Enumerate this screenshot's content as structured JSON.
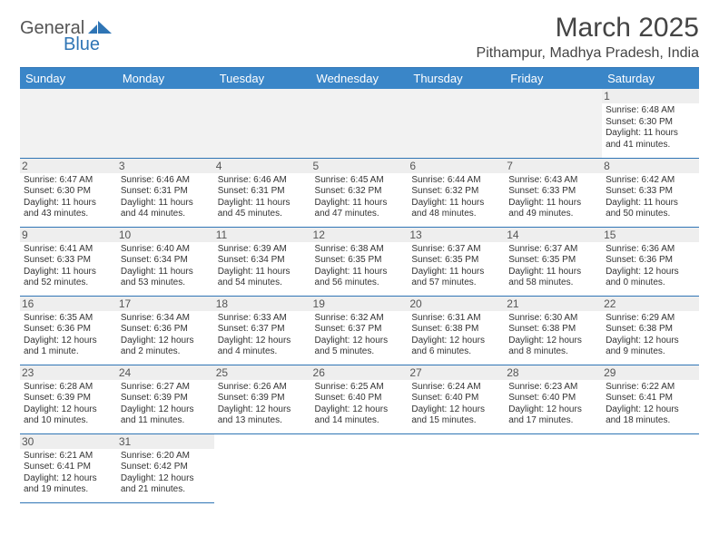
{
  "logo": {
    "general": "General",
    "blue": "Blue"
  },
  "title": "March 2025",
  "location": "Pithampur, Madhya Pradesh, India",
  "colors": {
    "header_bg": "#3a86c8",
    "header_text": "#ffffff",
    "border": "#2f75b5",
    "daynum_bg": "#eeeeee",
    "text": "#333333",
    "logo_blue": "#2f75b5"
  },
  "typography": {
    "title_fontsize": 30,
    "location_fontsize": 16,
    "dayheader_fontsize": 13,
    "daynum_fontsize": 12,
    "body_fontsize": 10
  },
  "dayHeaders": [
    "Sunday",
    "Monday",
    "Tuesday",
    "Wednesday",
    "Thursday",
    "Friday",
    "Saturday"
  ],
  "weeks": [
    [
      null,
      null,
      null,
      null,
      null,
      null,
      {
        "n": "1",
        "sr": "Sunrise: 6:48 AM",
        "ss": "Sunset: 6:30 PM",
        "dl": "Daylight: 11 hours and 41 minutes."
      }
    ],
    [
      {
        "n": "2",
        "sr": "Sunrise: 6:47 AM",
        "ss": "Sunset: 6:30 PM",
        "dl": "Daylight: 11 hours and 43 minutes."
      },
      {
        "n": "3",
        "sr": "Sunrise: 6:46 AM",
        "ss": "Sunset: 6:31 PM",
        "dl": "Daylight: 11 hours and 44 minutes."
      },
      {
        "n": "4",
        "sr": "Sunrise: 6:46 AM",
        "ss": "Sunset: 6:31 PM",
        "dl": "Daylight: 11 hours and 45 minutes."
      },
      {
        "n": "5",
        "sr": "Sunrise: 6:45 AM",
        "ss": "Sunset: 6:32 PM",
        "dl": "Daylight: 11 hours and 47 minutes."
      },
      {
        "n": "6",
        "sr": "Sunrise: 6:44 AM",
        "ss": "Sunset: 6:32 PM",
        "dl": "Daylight: 11 hours and 48 minutes."
      },
      {
        "n": "7",
        "sr": "Sunrise: 6:43 AM",
        "ss": "Sunset: 6:33 PM",
        "dl": "Daylight: 11 hours and 49 minutes."
      },
      {
        "n": "8",
        "sr": "Sunrise: 6:42 AM",
        "ss": "Sunset: 6:33 PM",
        "dl": "Daylight: 11 hours and 50 minutes."
      }
    ],
    [
      {
        "n": "9",
        "sr": "Sunrise: 6:41 AM",
        "ss": "Sunset: 6:33 PM",
        "dl": "Daylight: 11 hours and 52 minutes."
      },
      {
        "n": "10",
        "sr": "Sunrise: 6:40 AM",
        "ss": "Sunset: 6:34 PM",
        "dl": "Daylight: 11 hours and 53 minutes."
      },
      {
        "n": "11",
        "sr": "Sunrise: 6:39 AM",
        "ss": "Sunset: 6:34 PM",
        "dl": "Daylight: 11 hours and 54 minutes."
      },
      {
        "n": "12",
        "sr": "Sunrise: 6:38 AM",
        "ss": "Sunset: 6:35 PM",
        "dl": "Daylight: 11 hours and 56 minutes."
      },
      {
        "n": "13",
        "sr": "Sunrise: 6:37 AM",
        "ss": "Sunset: 6:35 PM",
        "dl": "Daylight: 11 hours and 57 minutes."
      },
      {
        "n": "14",
        "sr": "Sunrise: 6:37 AM",
        "ss": "Sunset: 6:35 PM",
        "dl": "Daylight: 11 hours and 58 minutes."
      },
      {
        "n": "15",
        "sr": "Sunrise: 6:36 AM",
        "ss": "Sunset: 6:36 PM",
        "dl": "Daylight: 12 hours and 0 minutes."
      }
    ],
    [
      {
        "n": "16",
        "sr": "Sunrise: 6:35 AM",
        "ss": "Sunset: 6:36 PM",
        "dl": "Daylight: 12 hours and 1 minute."
      },
      {
        "n": "17",
        "sr": "Sunrise: 6:34 AM",
        "ss": "Sunset: 6:36 PM",
        "dl": "Daylight: 12 hours and 2 minutes."
      },
      {
        "n": "18",
        "sr": "Sunrise: 6:33 AM",
        "ss": "Sunset: 6:37 PM",
        "dl": "Daylight: 12 hours and 4 minutes."
      },
      {
        "n": "19",
        "sr": "Sunrise: 6:32 AM",
        "ss": "Sunset: 6:37 PM",
        "dl": "Daylight: 12 hours and 5 minutes."
      },
      {
        "n": "20",
        "sr": "Sunrise: 6:31 AM",
        "ss": "Sunset: 6:38 PM",
        "dl": "Daylight: 12 hours and 6 minutes."
      },
      {
        "n": "21",
        "sr": "Sunrise: 6:30 AM",
        "ss": "Sunset: 6:38 PM",
        "dl": "Daylight: 12 hours and 8 minutes."
      },
      {
        "n": "22",
        "sr": "Sunrise: 6:29 AM",
        "ss": "Sunset: 6:38 PM",
        "dl": "Daylight: 12 hours and 9 minutes."
      }
    ],
    [
      {
        "n": "23",
        "sr": "Sunrise: 6:28 AM",
        "ss": "Sunset: 6:39 PM",
        "dl": "Daylight: 12 hours and 10 minutes."
      },
      {
        "n": "24",
        "sr": "Sunrise: 6:27 AM",
        "ss": "Sunset: 6:39 PM",
        "dl": "Daylight: 12 hours and 11 minutes."
      },
      {
        "n": "25",
        "sr": "Sunrise: 6:26 AM",
        "ss": "Sunset: 6:39 PM",
        "dl": "Daylight: 12 hours and 13 minutes."
      },
      {
        "n": "26",
        "sr": "Sunrise: 6:25 AM",
        "ss": "Sunset: 6:40 PM",
        "dl": "Daylight: 12 hours and 14 minutes."
      },
      {
        "n": "27",
        "sr": "Sunrise: 6:24 AM",
        "ss": "Sunset: 6:40 PM",
        "dl": "Daylight: 12 hours and 15 minutes."
      },
      {
        "n": "28",
        "sr": "Sunrise: 6:23 AM",
        "ss": "Sunset: 6:40 PM",
        "dl": "Daylight: 12 hours and 17 minutes."
      },
      {
        "n": "29",
        "sr": "Sunrise: 6:22 AM",
        "ss": "Sunset: 6:41 PM",
        "dl": "Daylight: 12 hours and 18 minutes."
      }
    ],
    [
      {
        "n": "30",
        "sr": "Sunrise: 6:21 AM",
        "ss": "Sunset: 6:41 PM",
        "dl": "Daylight: 12 hours and 19 minutes."
      },
      {
        "n": "31",
        "sr": "Sunrise: 6:20 AM",
        "ss": "Sunset: 6:42 PM",
        "dl": "Daylight: 12 hours and 21 minutes."
      },
      null,
      null,
      null,
      null,
      null
    ]
  ]
}
